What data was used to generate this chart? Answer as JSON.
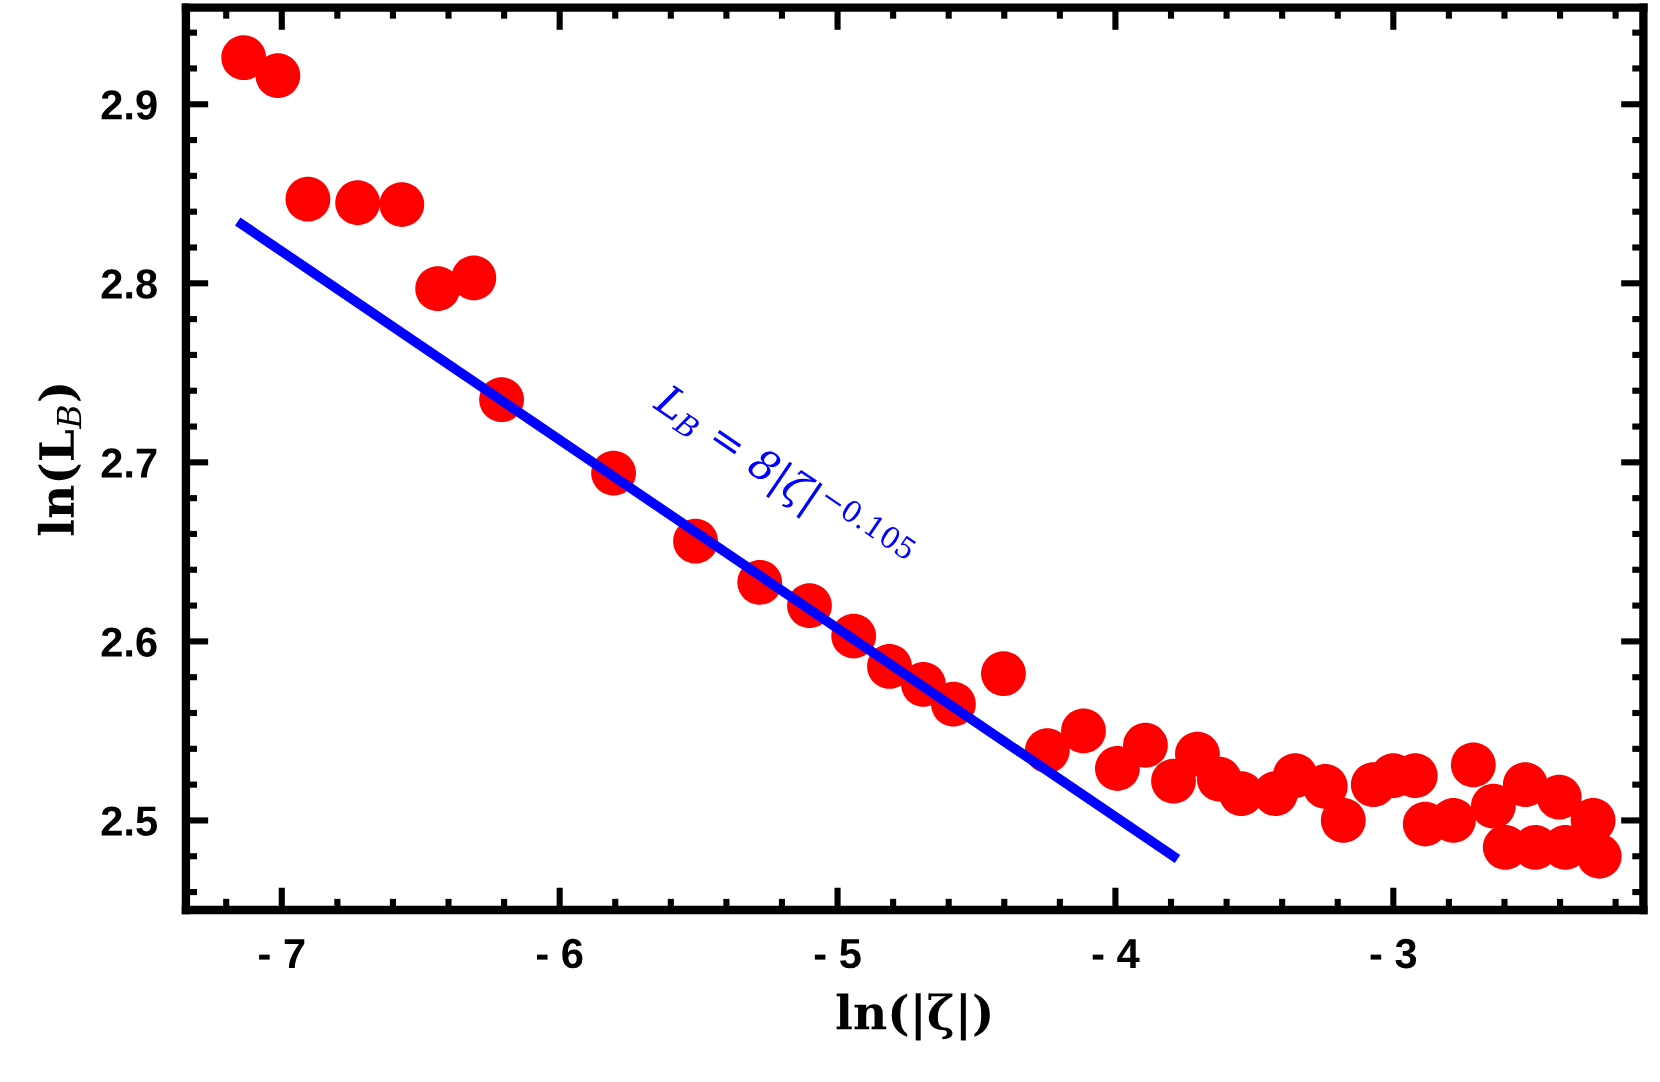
{
  "chart_data": {
    "type": "scatter",
    "xlabel": "ln(|ζ|)",
    "ylabel": "ln(L$_{B}$)",
    "xlim": [
      -7.345,
      -2.1
    ],
    "ylim": [
      2.45,
      2.954
    ],
    "xticks": [
      {
        "value": -7,
        "label": "- 7"
      },
      {
        "value": -6,
        "label": "- 6"
      },
      {
        "value": -5,
        "label": "- 5"
      },
      {
        "value": -4,
        "label": "- 4"
      },
      {
        "value": -3,
        "label": "- 3"
      }
    ],
    "yticks": [
      2.5,
      2.6,
      2.7,
      2.8,
      2.9
    ],
    "grid": false,
    "legend": false,
    "series": [
      {
        "color": "#ff0000",
        "marker": "circle",
        "x": [
          -7.137,
          -7.014,
          -6.906,
          -6.727,
          -6.568,
          -6.439,
          -6.309,
          -6.209,
          -5.806,
          -5.511,
          -5.28,
          -5.101,
          -4.942,
          -4.813,
          -4.691,
          -4.583,
          -4.403,
          -4.245,
          -4.115,
          -3.993,
          -3.892,
          -3.791,
          -3.705,
          -3.626,
          -3.547,
          -3.424,
          -3.353,
          -3.245,
          -3.18,
          -3.072,
          -3.0,
          -2.921,
          -2.885,
          -2.784,
          -2.712,
          -2.64,
          -2.597,
          -2.525,
          -2.489,
          -2.403,
          -2.381,
          -2.281,
          -2.259
        ],
        "values": [
          2.926,
          2.916,
          2.847,
          2.845,
          2.844,
          2.797,
          2.803,
          2.735,
          2.694,
          2.656,
          2.633,
          2.62,
          2.603,
          2.586,
          2.576,
          2.565,
          2.582,
          2.539,
          2.55,
          2.529,
          2.542,
          2.522,
          2.537,
          2.523,
          2.515,
          2.515,
          2.525,
          2.519,
          2.5,
          2.52,
          2.525,
          2.525,
          2.498,
          2.5,
          2.531,
          2.508,
          2.485,
          2.52,
          2.485,
          2.513,
          2.485,
          2.5,
          2.48
        ]
      },
      {
        "type": "line",
        "color": "#0000ff",
        "line_style": "solid",
        "x": [
          -7.144,
          -3.791
        ],
        "values": [
          2.833,
          2.48
        ]
      }
    ],
    "annotations": [
      "L$_{B}$ = 8|ζ|$^{−0.105}$"
    ]
  }
}
